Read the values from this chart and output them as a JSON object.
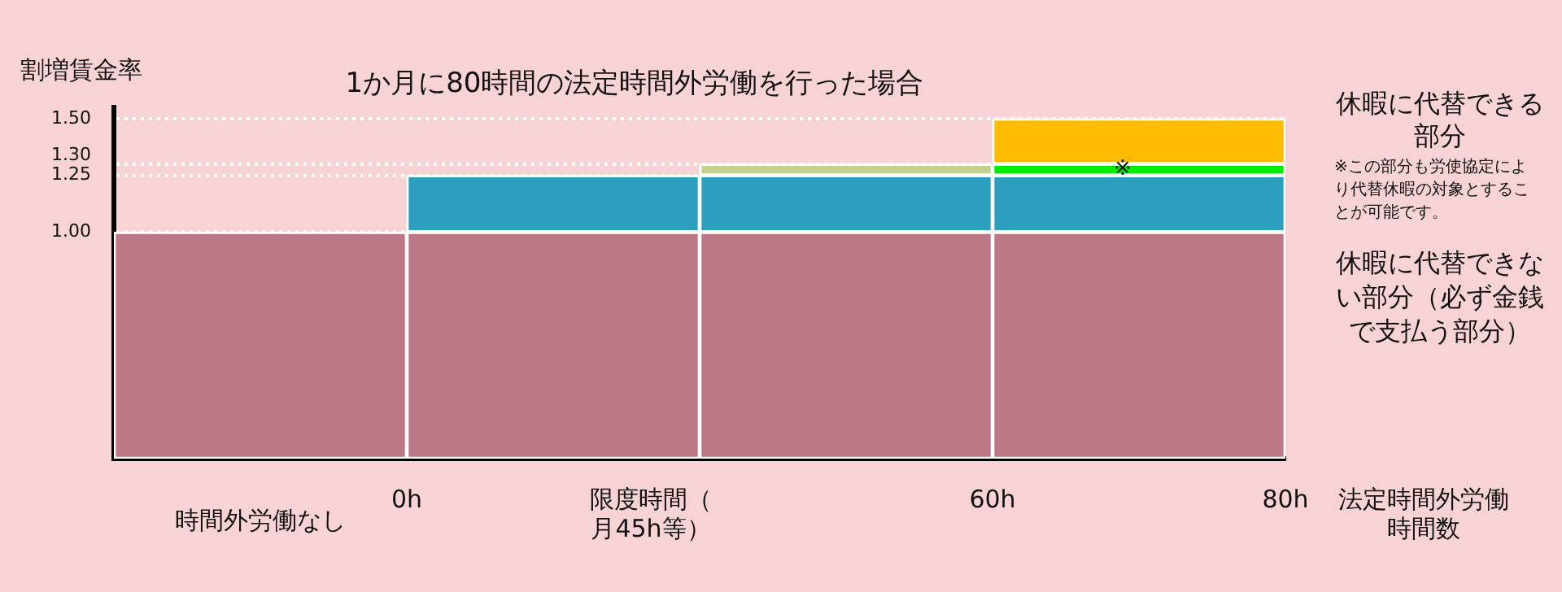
{
  "chart_data": {
    "type": "bar",
    "stacked": true,
    "title": "1か月に80時間の法定時間外労働を行った場合",
    "ylabel": "割増賃金率",
    "xlabel": "法定時間外労働時間数",
    "categories": [
      "時間外労働なし",
      null,
      null,
      null
    ],
    "series": [
      {
        "color": "#bd7887",
        "values": [
          1,
          1,
          1,
          1
        ]
      },
      {
        "color": "#2b9fbd",
        "values": [
          null,
          0.25,
          0.25,
          0.25
        ]
      },
      {
        "colors": [
          "#c5d08f",
          "#c5d08f",
          "#c5d08f",
          "#00ee00"
        ],
        "values": [
          null,
          null,
          0.05,
          0.05
        ]
      },
      {
        "color": "#ffbb00",
        "values": [
          null,
          null,
          null,
          0.2
        ]
      }
    ],
    "ylim": [
      0,
      1.55
    ],
    "yticks": [
      {
        "value": 1,
        "label": "1.00"
      },
      {
        "value": 1.25,
        "label": "1.25"
      },
      {
        "value": 1.3,
        "label": "1.30"
      },
      {
        "value": 1.5,
        "label": "1.50"
      }
    ],
    "grid": "y",
    "legend": false,
    "annotations": [
      "0h",
      "限度時間（月45h等）",
      "60h",
      "80h",
      "休暇に代替できる部分",
      "※この部分も労使協定により代替休暇の対象とすることが可能です。",
      "休暇に代替できない部分（必ず金銭で支払う部分）",
      "※"
    ]
  }
}
